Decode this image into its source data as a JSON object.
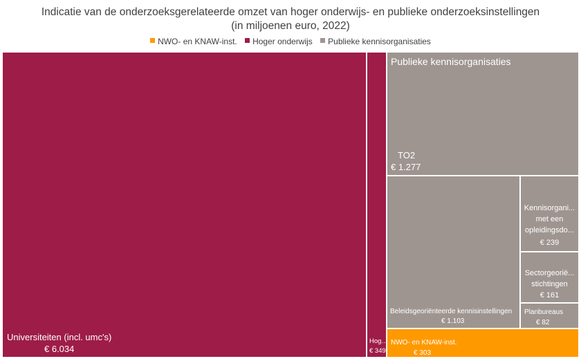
{
  "chart_data": {
    "type": "treemap",
    "title_lines": [
      "Indicatie van de onderzoeksgerelateerde omzet van hoger onderwijs- en publieke onderzoeksinstellingen",
      "(in miljoenen euro, 2022)"
    ],
    "legend": [
      {
        "name": "NWO- en KNAW-inst.",
        "color": "#FF9900"
      },
      {
        "name": "Hoger onderwijs",
        "color": "#9E1C48"
      },
      {
        "name": "Publieke kennisorganisaties",
        "color": "#9E9591"
      }
    ],
    "groups": [
      {
        "name": "Hoger onderwijs",
        "color": "#9E1C48",
        "items": [
          {
            "label": "Universiteiten (incl. umc's)",
            "value_label": "€ 6.034",
            "value": 6034
          },
          {
            "label": "Hog...",
            "value_label": "€ 349",
            "value": 349
          }
        ]
      },
      {
        "name": "Publieke kennisorganisaties",
        "color": "#9E9591",
        "items": [
          {
            "label": "TO2",
            "value_label": "€ 1.277",
            "value": 1277
          },
          {
            "label": "Beleidsgeoriënteerde kennisinstellingen",
            "value_label": "€ 1.103",
            "value": 1103
          },
          {
            "label": "Kennisorgani... met een opleidingsdo...",
            "value_label": "€ 239",
            "value": 239
          },
          {
            "label": "Sectorgeoriё... stichtingen",
            "value_label": "€ 161",
            "value": 161
          },
          {
            "label": "Planbureaus",
            "value_label": "€ 82",
            "value": 82
          }
        ]
      },
      {
        "name": "NWO- en KNAW-inst.",
        "color": "#FF9900",
        "items": [
          {
            "label": "NWO- en KNAW-inst.",
            "value_label": "€ 303",
            "value": 303
          }
        ]
      }
    ]
  }
}
